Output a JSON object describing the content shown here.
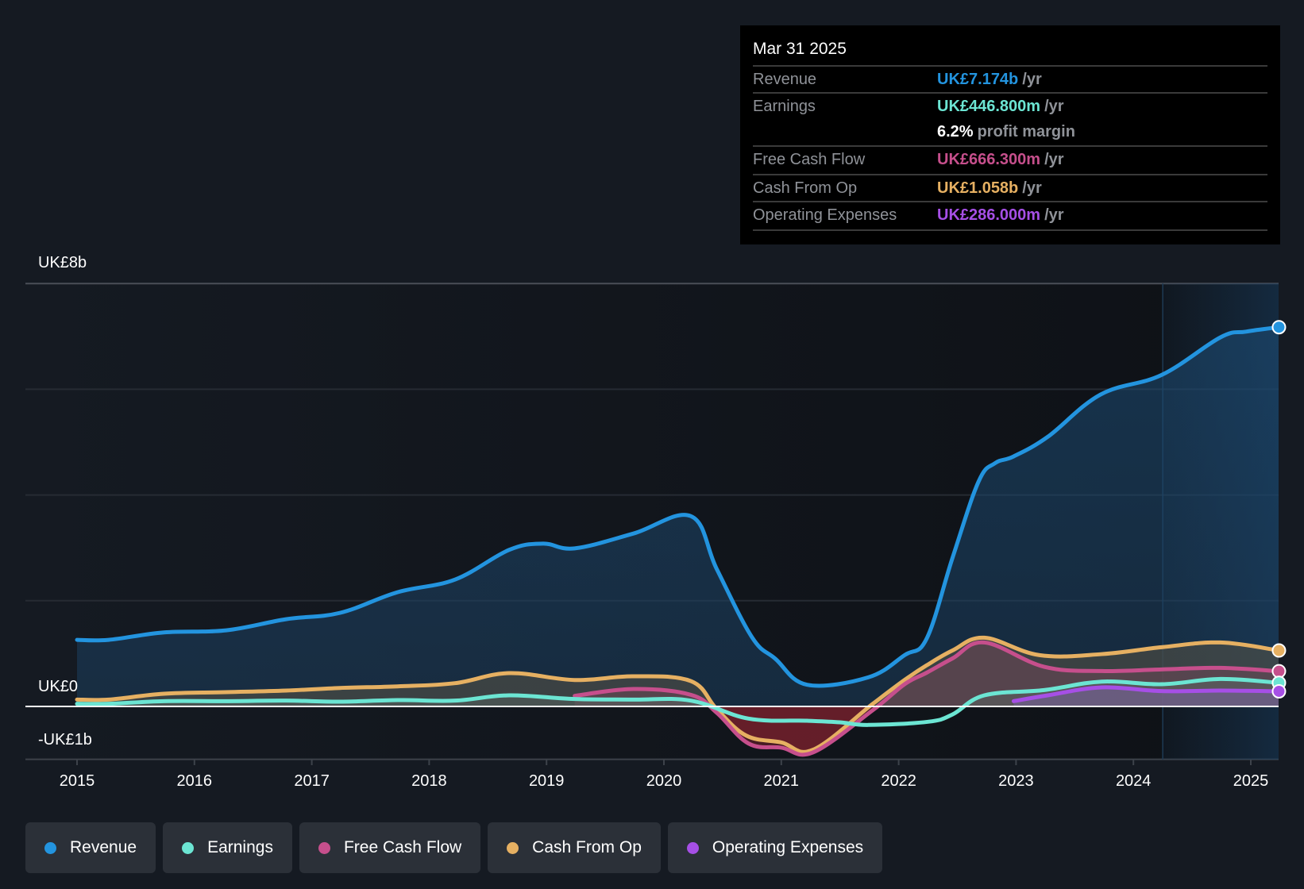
{
  "tooltip": {
    "date": "Mar 31 2025",
    "rows": [
      {
        "label": "Revenue",
        "value": "UK£7.174b",
        "unit": "/yr",
        "color": "#2394df"
      },
      {
        "label": "Earnings",
        "value": "UK£446.800m",
        "unit": "/yr",
        "color": "#6ce5d3"
      },
      {
        "label": "",
        "value": "6.2%",
        "unit": "profit margin",
        "color": "#ffffff"
      },
      {
        "label": "Free Cash Flow",
        "value": "UK£666.300m",
        "unit": "/yr",
        "color": "#c64f8c"
      },
      {
        "label": "Cash From Op",
        "value": "UK£1.058b",
        "unit": "/yr",
        "color": "#e6b062"
      },
      {
        "label": "Operating Expenses",
        "value": "UK£286.000m",
        "unit": "/yr",
        "color": "#a64fe6"
      }
    ]
  },
  "legend": [
    {
      "label": "Revenue",
      "color": "#2394df"
    },
    {
      "label": "Earnings",
      "color": "#6ce5d3"
    },
    {
      "label": "Free Cash Flow",
      "color": "#c64f8c"
    },
    {
      "label": "Cash From Op",
      "color": "#e6b062"
    },
    {
      "label": "Operating Expenses",
      "color": "#a64fe6"
    }
  ],
  "chart_data": {
    "type": "line",
    "title": "",
    "xlabel": "",
    "ylabel": "",
    "units": "UK£ billions",
    "xlim": [
      2015.0,
      2025.25
    ],
    "ylim": [
      -1,
      8
    ],
    "y_tick_labels": [
      {
        "value": 8,
        "label": "UK£8b"
      },
      {
        "value": 0,
        "label": "UK£0"
      },
      {
        "value": -1,
        "label": "-UK£1b"
      }
    ],
    "y_gridlines": [
      8,
      6,
      4,
      2,
      0,
      -1
    ],
    "x_ticks": [
      2015,
      2016,
      2017,
      2018,
      2019,
      2020,
      2021,
      2022,
      2023,
      2024,
      2025
    ],
    "x_tick_labels": [
      "2015",
      "2016",
      "2017",
      "2018",
      "2019",
      "2020",
      "2021",
      "2022",
      "2023",
      "2024",
      "2025"
    ],
    "highlight_from": 2024.25,
    "legend_position": "bottom",
    "series": [
      {
        "name": "Revenue",
        "color": "#2394df",
        "points": [
          [
            2015.0,
            1.26
          ],
          [
            2015.27,
            1.26
          ],
          [
            2015.74,
            1.4
          ],
          [
            2016.27,
            1.44
          ],
          [
            2016.78,
            1.65
          ],
          [
            2017.24,
            1.77
          ],
          [
            2017.73,
            2.16
          ],
          [
            2018.22,
            2.4
          ],
          [
            2018.68,
            2.96
          ],
          [
            2018.97,
            3.08
          ],
          [
            2019.24,
            2.99
          ],
          [
            2019.74,
            3.27
          ],
          [
            2020.23,
            3.6
          ],
          [
            2020.45,
            2.6
          ],
          [
            2020.75,
            1.31
          ],
          [
            2020.95,
            0.9
          ],
          [
            2021.22,
            0.41
          ],
          [
            2021.74,
            0.55
          ],
          [
            2022.05,
            0.97
          ],
          [
            2022.24,
            1.29
          ],
          [
            2022.46,
            2.82
          ],
          [
            2022.68,
            4.25
          ],
          [
            2022.82,
            4.6
          ],
          [
            2022.98,
            4.73
          ],
          [
            2023.27,
            5.1
          ],
          [
            2023.72,
            5.9
          ],
          [
            2024.24,
            6.27
          ],
          [
            2024.74,
            6.98
          ],
          [
            2024.96,
            7.09
          ],
          [
            2025.24,
            7.174
          ]
        ]
      },
      {
        "name": "Cash From Op",
        "color": "#e6b062",
        "points": [
          [
            2015.0,
            0.13
          ],
          [
            2015.27,
            0.13
          ],
          [
            2015.74,
            0.24
          ],
          [
            2016.27,
            0.27
          ],
          [
            2016.78,
            0.3
          ],
          [
            2017.24,
            0.35
          ],
          [
            2017.73,
            0.38
          ],
          [
            2018.22,
            0.44
          ],
          [
            2018.68,
            0.63
          ],
          [
            2019.24,
            0.5
          ],
          [
            2019.74,
            0.57
          ],
          [
            2020.23,
            0.48
          ],
          [
            2020.45,
            -0.05
          ],
          [
            2020.7,
            -0.55
          ],
          [
            2021.0,
            -0.68
          ],
          [
            2021.27,
            -0.82
          ],
          [
            2021.78,
            0.05
          ],
          [
            2022.05,
            0.5
          ],
          [
            2022.24,
            0.78
          ],
          [
            2022.46,
            1.06
          ],
          [
            2022.73,
            1.3
          ],
          [
            2023.2,
            0.97
          ],
          [
            2023.73,
            0.99
          ],
          [
            2024.24,
            1.12
          ],
          [
            2024.74,
            1.21
          ],
          [
            2025.24,
            1.058
          ]
        ]
      },
      {
        "name": "Free Cash Flow",
        "color": "#c64f8c",
        "points": [
          [
            2019.24,
            0.2
          ],
          [
            2019.74,
            0.33
          ],
          [
            2020.23,
            0.22
          ],
          [
            2020.45,
            -0.12
          ],
          [
            2020.72,
            -0.7
          ],
          [
            2021.0,
            -0.78
          ],
          [
            2021.27,
            -0.87
          ],
          [
            2021.78,
            -0.07
          ],
          [
            2022.05,
            0.42
          ],
          [
            2022.24,
            0.64
          ],
          [
            2022.46,
            0.91
          ],
          [
            2022.73,
            1.21
          ],
          [
            2023.24,
            0.75
          ],
          [
            2023.73,
            0.67
          ],
          [
            2024.24,
            0.7
          ],
          [
            2024.74,
            0.73
          ],
          [
            2025.24,
            0.6663
          ]
        ]
      },
      {
        "name": "Earnings",
        "color": "#6ce5d3",
        "points": [
          [
            2015.0,
            0.05
          ],
          [
            2015.27,
            0.05
          ],
          [
            2015.74,
            0.1
          ],
          [
            2016.27,
            0.1
          ],
          [
            2016.78,
            0.11
          ],
          [
            2017.24,
            0.09
          ],
          [
            2017.73,
            0.12
          ],
          [
            2018.22,
            0.11
          ],
          [
            2018.68,
            0.21
          ],
          [
            2019.24,
            0.14
          ],
          [
            2019.74,
            0.13
          ],
          [
            2020.23,
            0.11
          ],
          [
            2020.72,
            -0.23
          ],
          [
            2021.22,
            -0.27
          ],
          [
            2021.5,
            -0.3
          ],
          [
            2021.74,
            -0.35
          ],
          [
            2022.25,
            -0.29
          ],
          [
            2022.46,
            -0.15
          ],
          [
            2022.73,
            0.21
          ],
          [
            2023.24,
            0.31
          ],
          [
            2023.73,
            0.47
          ],
          [
            2024.24,
            0.42
          ],
          [
            2024.74,
            0.52
          ],
          [
            2025.24,
            0.4468
          ]
        ]
      },
      {
        "name": "Operating Expenses",
        "color": "#a64fe6",
        "points": [
          [
            2022.98,
            0.1
          ],
          [
            2023.27,
            0.21
          ],
          [
            2023.73,
            0.36
          ],
          [
            2024.24,
            0.29
          ],
          [
            2024.74,
            0.3
          ],
          [
            2025.24,
            0.286
          ]
        ]
      }
    ]
  }
}
